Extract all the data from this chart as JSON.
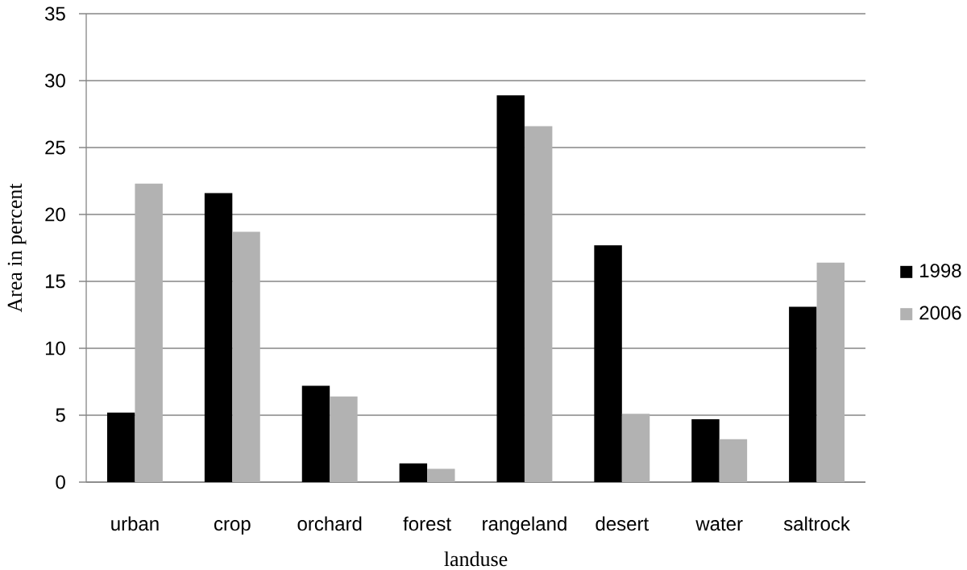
{
  "chart_data": {
    "type": "bar",
    "xlabel": "landuse",
    "ylabel": "Area in percent",
    "categories": [
      "urban",
      "crop",
      "orchard",
      "forest",
      "rangeland",
      "desert",
      "water",
      "saltrock"
    ],
    "series": [
      {
        "name": "1998",
        "color": "#000000",
        "values": [
          5.2,
          21.6,
          7.2,
          1.4,
          28.9,
          17.7,
          4.7,
          13.1
        ]
      },
      {
        "name": "2006",
        "color": "#b2b2b2",
        "values": [
          22.3,
          18.7,
          6.4,
          1.0,
          26.6,
          5.1,
          3.2,
          16.4
        ]
      }
    ],
    "ylim": [
      0,
      35
    ],
    "yticks": [
      0,
      5,
      10,
      15,
      20,
      25,
      30,
      35
    ],
    "grid": "y",
    "legend": "right"
  }
}
